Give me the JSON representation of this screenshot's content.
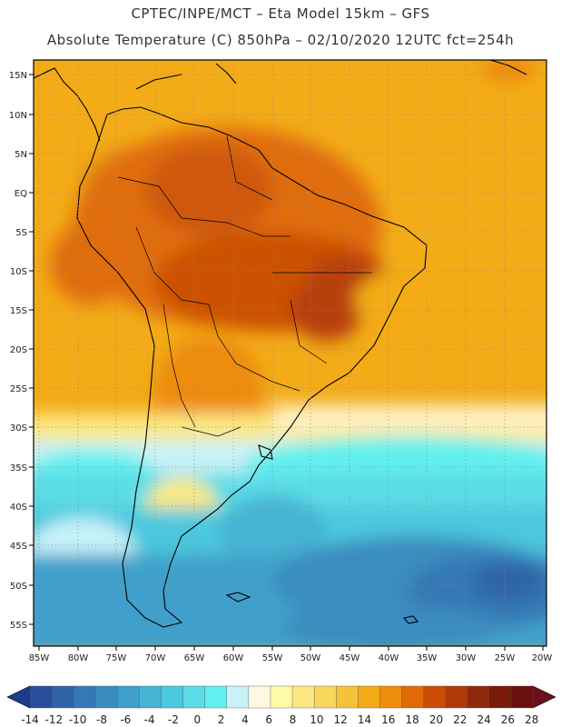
{
  "header": {
    "title_line1": "CPTEC/INPE/MCT –  Eta Model 15km – GFS",
    "title_line2": "Absolute Temperature (C) 850hPa – 02/10/2020 12UTC fct=254h"
  },
  "map": {
    "lon_labels": [
      "85W",
      "80W",
      "75W",
      "70W",
      "65W",
      "60W",
      "55W",
      "50W",
      "45W",
      "40W",
      "35W",
      "30W",
      "25W",
      "20W"
    ],
    "lat_labels": [
      "15N",
      "10N",
      "5N",
      "EQ",
      "5S",
      "10S",
      "15S",
      "20S",
      "25S",
      "30S",
      "35S",
      "40S",
      "45S",
      "50S",
      "55S"
    ]
  },
  "colorbar": {
    "labels": [
      "-14",
      "-12",
      "-10",
      "-8",
      "-6",
      "-4",
      "-2",
      "0",
      "2",
      "4",
      "6",
      "8",
      "10",
      "12",
      "14",
      "16",
      "18",
      "20",
      "22",
      "24",
      "26",
      "28"
    ],
    "colors": [
      "#2b4d9c",
      "#2f63a8",
      "#3478b5",
      "#3a8cc0",
      "#3fa0cb",
      "#45b4d4",
      "#4cc8de",
      "#5bdce6",
      "#62f0ee",
      "#c8f2f8",
      "#fff8e0",
      "#fffaa8",
      "#fbe882",
      "#f9d65c",
      "#f6c23c",
      "#f3ab18",
      "#ee8c0c",
      "#df6a06",
      "#cc4c04",
      "#b03a08",
      "#8e2a0a",
      "#7a1a08",
      "#6a0f10"
    ],
    "under_color": "#1e3a8a",
    "over_color": "#6a0f1e"
  }
}
